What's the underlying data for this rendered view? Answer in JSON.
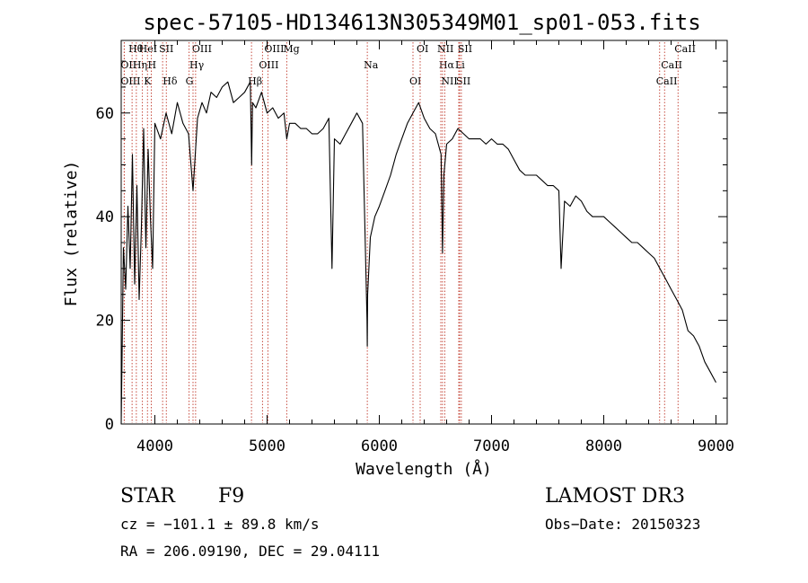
{
  "chart_data": {
    "type": "line",
    "title": "spec-57105-HD134613N305349M01_sp01-053.fits",
    "xlabel": "Wavelength (Å)",
    "ylabel": "Flux (relative)",
    "xlim": [
      3700,
      9100
    ],
    "ylim": [
      0,
      74
    ],
    "xticks": [
      4000,
      5000,
      6000,
      7000,
      8000,
      9000
    ],
    "yticks": [
      0,
      20,
      40,
      60
    ],
    "series": [
      {
        "name": "flux",
        "x": [
          3700,
          3720,
          3740,
          3760,
          3780,
          3800,
          3820,
          3840,
          3860,
          3880,
          3900,
          3920,
          3940,
          3960,
          3980,
          4000,
          4050,
          4100,
          4150,
          4200,
          4250,
          4300,
          4340,
          4380,
          4420,
          4460,
          4500,
          4550,
          4600,
          4650,
          4700,
          4750,
          4800,
          4850,
          4862,
          4870,
          4900,
          4950,
          5000,
          5050,
          5100,
          5150,
          5175,
          5200,
          5250,
          5300,
          5350,
          5400,
          5450,
          5500,
          5550,
          5578,
          5600,
          5650,
          5700,
          5750,
          5800,
          5850,
          5890,
          5893,
          5896,
          5920,
          5960,
          6000,
          6050,
          6100,
          6150,
          6200,
          6250,
          6300,
          6350,
          6400,
          6450,
          6500,
          6550,
          6563,
          6575,
          6600,
          6650,
          6700,
          6750,
          6800,
          6850,
          6900,
          6950,
          7000,
          7050,
          7100,
          7150,
          7200,
          7250,
          7300,
          7350,
          7400,
          7450,
          7500,
          7550,
          7600,
          7620,
          7650,
          7700,
          7750,
          7800,
          7850,
          7900,
          7950,
          8000,
          8050,
          8100,
          8150,
          8200,
          8250,
          8300,
          8350,
          8400,
          8450,
          8500,
          8550,
          8600,
          8650,
          8700,
          8750,
          8800,
          8850,
          8900,
          8950,
          9000
        ],
        "values": [
          0,
          34,
          26,
          42,
          30,
          52,
          27,
          46,
          24,
          38,
          57,
          34,
          53,
          40,
          30,
          58,
          55,
          60,
          56,
          62,
          58,
          56,
          45,
          59,
          62,
          60,
          64,
          63,
          65,
          66,
          62,
          63,
          64,
          66,
          50,
          62,
          61,
          64,
          60,
          61,
          59,
          60,
          55,
          58,
          58,
          57,
          57,
          56,
          56,
          57,
          59,
          30,
          55,
          54,
          56,
          58,
          60,
          58,
          20,
          15,
          25,
          36,
          40,
          42,
          45,
          48,
          52,
          55,
          58,
          60,
          62,
          59,
          57,
          56,
          52,
          33,
          48,
          54,
          55,
          57,
          56,
          55,
          55,
          55,
          54,
          55,
          54,
          54,
          53,
          51,
          49,
          48,
          48,
          48,
          47,
          46,
          46,
          45,
          30,
          43,
          42,
          44,
          43,
          41,
          40,
          40,
          40,
          39,
          38,
          37,
          36,
          35,
          35,
          34,
          33,
          32,
          30,
          28,
          26,
          24,
          22,
          18,
          17,
          15,
          12,
          10,
          8
        ]
      }
    ],
    "spectral_lines": [
      {
        "label": "Hθ",
        "x": 3797
      },
      {
        "label": "OII",
        "x": 3727
      },
      {
        "label": "OIII",
        "x": 3727
      },
      {
        "label": "HeI",
        "x": 3889
      },
      {
        "label": "Hη",
        "x": 3835
      },
      {
        "label": "K",
        "x": 3934
      },
      {
        "label": "SII",
        "x": 4069
      },
      {
        "label": "H",
        "x": 3968
      },
      {
        "label": "Hδ",
        "x": 4102
      },
      {
        "label": "OIII",
        "x": 4363
      },
      {
        "label": "Hγ",
        "x": 4340
      },
      {
        "label": "G",
        "x": 4305
      },
      {
        "label": "OIII",
        "x": 5007
      },
      {
        "label": "OIII",
        "x": 4959
      },
      {
        "label": "Hβ",
        "x": 4861
      },
      {
        "label": "Mg",
        "x": 5175
      },
      {
        "label": "Na",
        "x": 5893
      },
      {
        "label": "OI",
        "x": 6300
      },
      {
        "label": "OI",
        "x": 6364
      },
      {
        "label": "Hα",
        "x": 6563
      },
      {
        "label": "SII",
        "x": 6716
      },
      {
        "label": "NII",
        "x": 6548
      },
      {
        "label": "Li",
        "x": 6708
      },
      {
        "label": "NII",
        "x": 6583
      },
      {
        "label": "SII",
        "x": 6731
      },
      {
        "label": "CaII",
        "x": 8542
      },
      {
        "label": "CaII",
        "x": 8498
      },
      {
        "label": "CaII",
        "x": 8662
      }
    ]
  },
  "footer": {
    "object_class": "STAR",
    "subclass": "F9",
    "survey": "LAMOST DR3",
    "cz": "cz = −101.1 ± 89.8 km/s",
    "obs_date": "Obs−Date: 20150323",
    "coords": "RA = 206.09190, DEC =  29.04111"
  }
}
